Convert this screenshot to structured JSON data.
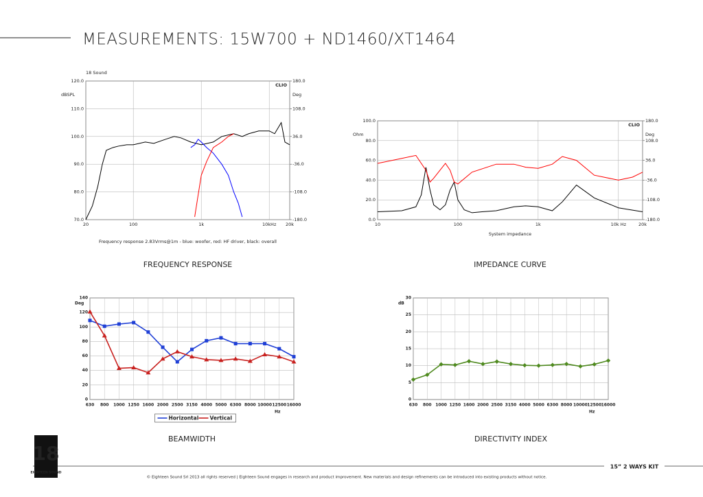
{
  "header": {
    "title": "MEASUREMENTS: 15W700 + ND1460/XT1464"
  },
  "chart_data": [
    {
      "type": "line",
      "title": "FREQUENCY RESPONSE",
      "source": "18 Sound",
      "watermark": "CLIO",
      "caption": "Frequency response 2.83Vrms@1m - blue: woofer, red: HF driver, black: overall",
      "ylabel": "dBSPL",
      "y2label": "Deg",
      "xscale": "log",
      "grid": true,
      "xlim": [
        20,
        20000
      ],
      "xticks": [
        20,
        100,
        {
          "value": 1000,
          "label": "1k"
        },
        {
          "value": 10000,
          "label": "10kHz"
        },
        {
          "value": 20000,
          "label": "20k"
        }
      ],
      "ylim": [
        70,
        120
      ],
      "yticks": [
        {
          "value": 70,
          "label": "70.0"
        },
        {
          "value": 80,
          "label": "80.0"
        },
        {
          "value": 90,
          "label": "90.0"
        },
        {
          "value": 100,
          "label": "100.0"
        },
        {
          "value": 110,
          "label": "110.0"
        },
        {
          "value": 120,
          "label": "120.0"
        }
      ],
      "y2lim": [
        -180,
        180
      ],
      "y2ticks": [
        {
          "value": -180,
          "label": "-180.0"
        },
        {
          "value": -108,
          "label": "-108.0"
        },
        {
          "value": -36,
          "label": "-36.0"
        },
        {
          "value": 36,
          "label": "36.0"
        },
        {
          "value": 108,
          "label": "108.0"
        },
        {
          "value": 180,
          "label": "180.0"
        }
      ],
      "series": [
        {
          "color": "#000000",
          "x": [
            20,
            25,
            30,
            35,
            40,
            50,
            60,
            80,
            100,
            150,
            200,
            300,
            400,
            500,
            700,
            1000,
            1500,
            2000,
            3000,
            4000,
            5000,
            7000,
            10000,
            12000,
            15000,
            17000,
            20000
          ],
          "values": [
            70,
            75,
            82,
            90,
            95,
            96,
            96.5,
            97,
            97,
            98,
            97.5,
            99,
            100,
            99.5,
            98,
            97,
            98,
            100,
            101,
            100,
            101,
            102,
            102,
            101,
            105,
            98,
            97
          ]
        },
        {
          "color": "#0000ff",
          "x": [
            700,
            800,
            900,
            1000,
            1200,
            1500,
            2000,
            2500,
            3000,
            3500,
            4000
          ],
          "values": [
            96,
            97,
            99,
            98,
            96,
            94,
            90,
            86,
            80,
            76,
            71
          ]
        },
        {
          "color": "#ff0000",
          "x": [
            800,
            900,
            1000,
            1200,
            1500,
            2000,
            2500,
            3000
          ],
          "values": [
            71,
            79,
            86,
            91,
            96,
            98,
            100,
            101
          ]
        }
      ]
    },
    {
      "type": "line",
      "title": "IMPEDANCE CURVE",
      "watermark": "CLIO",
      "xlabel": "System impedance",
      "ylabel": "Ohm",
      "y2label": "Deg",
      "xscale": "log",
      "grid": true,
      "xlim": [
        10,
        20000
      ],
      "xticks": [
        10,
        100,
        {
          "value": 1000,
          "label": "1k"
        },
        {
          "value": 10000,
          "label": "10k Hz"
        },
        {
          "value": 20000,
          "label": "20k"
        }
      ],
      "ylim": [
        0,
        100
      ],
      "yticks": [
        {
          "value": 0,
          "label": "0.0"
        },
        {
          "value": 20,
          "label": "20.0"
        },
        {
          "value": 40,
          "label": "40.0"
        },
        {
          "value": 60,
          "label": "60.0"
        },
        {
          "value": 80,
          "label": "80.0"
        },
        {
          "value": 100,
          "label": "100.0"
        }
      ],
      "y2lim": [
        -180,
        180
      ],
      "y2ticks": [
        {
          "value": -180,
          "label": "-180.0"
        },
        {
          "value": -108,
          "label": "-108.0"
        },
        {
          "value": -36,
          "label": "-36.0"
        },
        {
          "value": 36,
          "label": "36.0"
        },
        {
          "value": 108,
          "label": "108.0"
        },
        {
          "value": 180,
          "label": "180.0"
        }
      ],
      "series": [
        {
          "color": "#000000",
          "x": [
            10,
            20,
            30,
            35,
            40,
            45,
            50,
            60,
            70,
            80,
            90,
            100,
            120,
            150,
            200,
            300,
            500,
            700,
            1000,
            1500,
            2000,
            3000,
            5000,
            10000,
            20000
          ],
          "values": [
            8,
            9,
            13,
            25,
            53,
            30,
            15,
            10,
            15,
            30,
            38,
            20,
            10,
            7,
            8,
            9,
            13,
            14,
            13,
            9,
            18,
            35,
            22,
            12,
            8
          ]
        },
        {
          "color": "#ff0000",
          "axis": "y2",
          "x": [
            10,
            20,
            30,
            40,
            45,
            50,
            70,
            80,
            90,
            100,
            150,
            300,
            500,
            700,
            1000,
            1500,
            2000,
            3000,
            5000,
            10000,
            15000,
            20000
          ],
          "values": [
            25,
            43,
            54,
            0,
            -43,
            -29,
            25,
            0,
            -43,
            -50,
            -7,
            22,
            22,
            11,
            7,
            22,
            50,
            36,
            -18,
            -36,
            -25,
            -7
          ]
        }
      ]
    },
    {
      "type": "line",
      "title": "BEAMWIDTH",
      "ylabel": "Deg",
      "xlabel": "Hz",
      "grid": true,
      "legend": "bottom",
      "categories": [
        "630",
        "800",
        "1000",
        "1250",
        "1600",
        "2000",
        "2500",
        "3150",
        "4000",
        "5000",
        "6300",
        "8000",
        "10000",
        "12500",
        "16000"
      ],
      "ylim": [
        0,
        140
      ],
      "yticks": [
        0,
        20,
        40,
        60,
        80,
        100,
        120,
        140
      ],
      "series": [
        {
          "name": "Horizontal",
          "color": "#1f3fd6",
          "marker": "square",
          "values": [
            109,
            101,
            104,
            106,
            93,
            72,
            52,
            69,
            81,
            85,
            77,
            77,
            77,
            70,
            59
          ]
        },
        {
          "name": "Vertical",
          "color": "#c8201e",
          "marker": "triangle",
          "values": [
            121,
            88,
            43,
            44,
            37,
            56,
            66,
            59,
            55,
            54,
            56,
            53,
            62,
            59,
            52
          ]
        }
      ]
    },
    {
      "type": "line",
      "title": "DIRECTIVITY INDEX",
      "ylabel": "dB",
      "xlabel": "Hz",
      "grid": true,
      "categories": [
        "630",
        "800",
        "1000",
        "1250",
        "1600",
        "2000",
        "2500",
        "3150",
        "4000",
        "5000",
        "6300",
        "8000",
        "10000",
        "12500",
        "16000"
      ],
      "ylim": [
        0,
        30
      ],
      "yticks": [
        0,
        5,
        10,
        15,
        20,
        25,
        30
      ],
      "series": [
        {
          "color": "#4f8a1f",
          "marker": "diamond",
          "values": [
            5.9,
            7.3,
            10.4,
            10.2,
            11.3,
            10.5,
            11.2,
            10.5,
            10.1,
            10.0,
            10.2,
            10.5,
            9.8,
            10.4,
            11.5
          ]
        }
      ]
    }
  ],
  "footer": {
    "logo_number": "18",
    "logo_text": "EIGHTEEN SOUND",
    "product": "15” 2 WAYS KIT",
    "copyright": "© Eighteen Sound Srl 2013 all rights reserved | Eighteen Sound engages in research and product improvement. New materials and design refinements can be introduced into existing products without notice."
  }
}
